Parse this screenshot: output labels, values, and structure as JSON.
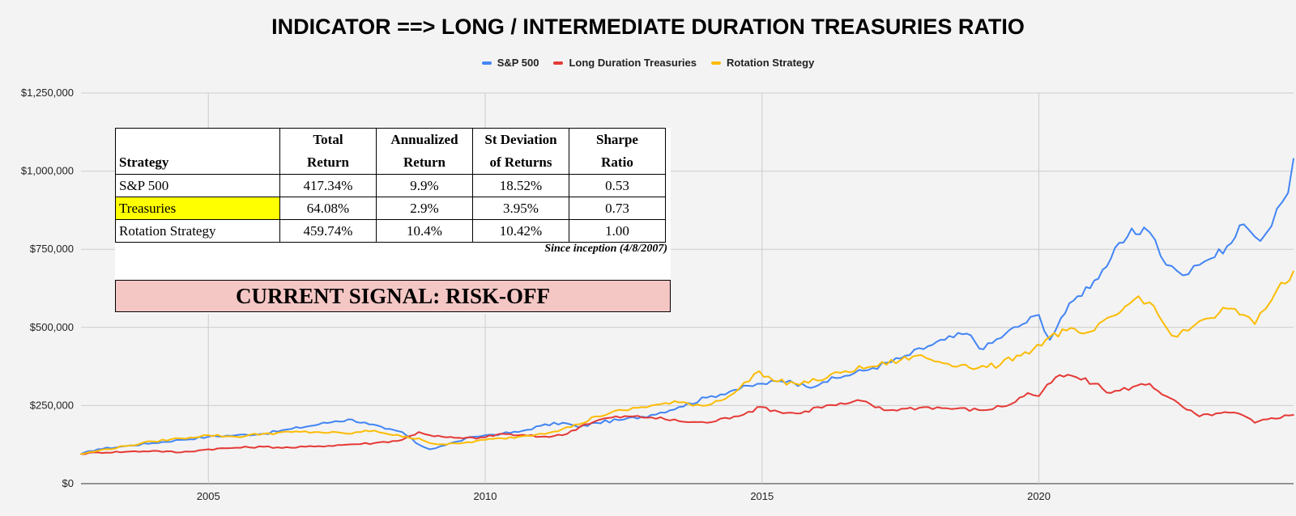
{
  "chart_data": {
    "type": "line",
    "title": "INDICATOR ==> LONG / INTERMEDIATE DURATION TREASURIES RATIO",
    "xlabel": "",
    "ylabel": "",
    "xlim": [
      2002.7,
      2024.6
    ],
    "ylim": [
      0,
      1250000
    ],
    "yticks": [
      0,
      250000,
      500000,
      750000,
      1000000,
      1250000
    ],
    "ytick_labels": [
      "$0",
      "$250,000",
      "$500,000",
      "$750,000",
      "$1,000,000",
      "$1,250,000"
    ],
    "xticks": [
      2005,
      2010,
      2015,
      2020
    ],
    "xtick_labels": [
      "2005",
      "2010",
      "2015",
      "2020"
    ],
    "grid": true,
    "legend_position": "top-center",
    "series": [
      {
        "name": "S&P 500",
        "color": "#4285f4",
        "x": [
          2002.7,
          2003.0,
          2003.5,
          2004.0,
          2004.5,
          2005.0,
          2005.5,
          2006.0,
          2006.5,
          2007.0,
          2007.3,
          2007.6,
          2007.9,
          2008.2,
          2008.5,
          2008.75,
          2009.0,
          2009.2,
          2009.5,
          2009.8,
          2010.0,
          2010.3,
          2010.6,
          2011.0,
          2011.4,
          2011.7,
          2012.0,
          2012.5,
          2013.0,
          2013.5,
          2014.0,
          2014.5,
          2015.0,
          2015.5,
          2015.8,
          2016.1,
          2016.5,
          2017.0,
          2017.5,
          2018.0,
          2018.3,
          2018.7,
          2019.0,
          2019.4,
          2019.7,
          2020.0,
          2020.2,
          2020.4,
          2020.7,
          2021.0,
          2021.3,
          2021.6,
          2021.9,
          2022.1,
          2022.3,
          2022.5,
          2022.7,
          2022.9,
          2023.1,
          2023.4,
          2023.7,
          2023.9,
          2024.1,
          2024.3,
          2024.5,
          2024.6
        ],
        "values": [
          95000,
          110000,
          120000,
          130000,
          140000,
          150000,
          155000,
          160000,
          175000,
          190000,
          200000,
          205000,
          190000,
          175000,
          165000,
          130000,
          110000,
          120000,
          135000,
          150000,
          155000,
          160000,
          165000,
          185000,
          195000,
          180000,
          195000,
          205000,
          220000,
          245000,
          275000,
          300000,
          320000,
          330000,
          310000,
          325000,
          345000,
          370000,
          400000,
          440000,
          460000,
          480000,
          430000,
          480000,
          510000,
          540000,
          460000,
          530000,
          600000,
          650000,
          720000,
          790000,
          820000,
          780000,
          700000,
          680000,
          670000,
          700000,
          720000,
          760000,
          830000,
          790000,
          800000,
          880000,
          930000,
          1040000
        ]
      },
      {
        "name": "Long Duration Treasuries",
        "color": "#e53935",
        "x": [
          2002.7,
          2003.0,
          2003.5,
          2004.0,
          2004.5,
          2005.0,
          2005.5,
          2006.0,
          2006.5,
          2007.0,
          2007.5,
          2008.0,
          2008.5,
          2008.8,
          2009.0,
          2009.3,
          2009.6,
          2010.0,
          2010.3,
          2010.6,
          2011.0,
          2011.4,
          2011.8,
          2012.2,
          2012.6,
          2013.0,
          2013.5,
          2014.0,
          2014.5,
          2015.0,
          2015.3,
          2015.7,
          2016.0,
          2016.5,
          2016.8,
          2017.2,
          2017.6,
          2018.0,
          2018.5,
          2019.0,
          2019.5,
          2019.8,
          2020.0,
          2020.3,
          2020.6,
          2021.0,
          2021.3,
          2021.7,
          2022.0,
          2022.3,
          2022.6,
          2022.9,
          2023.2,
          2023.6,
          2023.9,
          2024.2,
          2024.6
        ],
        "values": [
          95000,
          100000,
          102000,
          105000,
          100000,
          110000,
          115000,
          118000,
          115000,
          120000,
          125000,
          130000,
          140000,
          165000,
          155000,
          148000,
          145000,
          148000,
          160000,
          155000,
          150000,
          155000,
          190000,
          210000,
          215000,
          212000,
          200000,
          195000,
          215000,
          245000,
          230000,
          225000,
          245000,
          255000,
          265000,
          235000,
          240000,
          245000,
          240000,
          235000,
          255000,
          290000,
          280000,
          340000,
          345000,
          320000,
          290000,
          310000,
          320000,
          280000,
          245000,
          215000,
          225000,
          225000,
          195000,
          210000,
          220000
        ]
      },
      {
        "name": "Rotation Strategy",
        "color": "#fbbc04",
        "x": [
          2002.7,
          2003.0,
          2003.5,
          2004.0,
          2004.5,
          2005.0,
          2005.5,
          2006.0,
          2006.5,
          2007.0,
          2007.5,
          2008.0,
          2008.5,
          2008.8,
          2009.0,
          2009.3,
          2009.6,
          2010.0,
          2010.3,
          2010.6,
          2011.0,
          2011.4,
          2011.7,
          2012.0,
          2012.5,
          2013.0,
          2013.5,
          2014.0,
          2014.5,
          2014.95,
          2015.2,
          2015.6,
          2016.0,
          2016.5,
          2017.0,
          2017.5,
          2017.8,
          2018.2,
          2018.6,
          2018.9,
          2019.3,
          2019.6,
          2019.9,
          2020.2,
          2020.5,
          2020.8,
          2021.0,
          2021.4,
          2021.8,
          2022.0,
          2022.3,
          2022.5,
          2022.7,
          2022.9,
          2023.1,
          2023.4,
          2023.7,
          2023.9,
          2024.1,
          2024.3,
          2024.45,
          2024.6
        ],
        "values": [
          95000,
          105000,
          120000,
          135000,
          145000,
          155000,
          150000,
          160000,
          165000,
          165000,
          160000,
          170000,
          150000,
          145000,
          130000,
          125000,
          130000,
          140000,
          145000,
          150000,
          160000,
          175000,
          190000,
          215000,
          235000,
          250000,
          260000,
          250000,
          290000,
          360000,
          330000,
          320000,
          330000,
          360000,
          375000,
          395000,
          410000,
          390000,
          380000,
          370000,
          380000,
          410000,
          430000,
          470000,
          490000,
          480000,
          490000,
          540000,
          600000,
          580000,
          500000,
          470000,
          490000,
          520000,
          530000,
          560000,
          540000,
          510000,
          560000,
          620000,
          640000,
          680000
        ]
      }
    ]
  },
  "stats_table": {
    "headers": [
      {
        "line1": "",
        "line2": "Strategy"
      },
      {
        "line1": "Total",
        "line2": "Return"
      },
      {
        "line1": "Annualized",
        "line2": "Return"
      },
      {
        "line1": "St Deviation",
        "line2": "of Returns"
      },
      {
        "line1": "Sharpe",
        "line2": "Ratio"
      }
    ],
    "rows": [
      {
        "strategy": "S&P 500",
        "total_return": "417.34%",
        "annualized_return": "9.9%",
        "st_deviation": "18.52%",
        "sharpe_ratio": "0.53"
      },
      {
        "strategy": "Treasuries",
        "total_return": "64.08%",
        "annualized_return": "2.9%",
        "st_deviation": "3.95%",
        "sharpe_ratio": "0.73"
      },
      {
        "strategy": "Rotation Strategy",
        "total_return": "459.74%",
        "annualized_return": "10.4%",
        "st_deviation": "10.42%",
        "sharpe_ratio": "1.00"
      }
    ],
    "highlight_color": "#ffff00",
    "since_inception": "Since inception (4/8/2007)"
  },
  "signal": {
    "text": "CURRENT SIGNAL: RISK-OFF",
    "background": "#f4c6c4"
  }
}
